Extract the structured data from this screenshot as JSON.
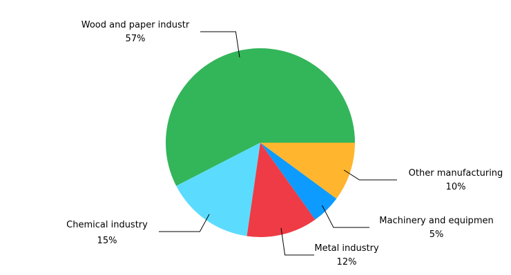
{
  "chart_data": {
    "type": "pie",
    "title": "",
    "start": "3 o'clock",
    "direction": "counter-clockwise",
    "slices": [
      {
        "label": "Wood and paper industr",
        "value": 57,
        "pct_label": "57%",
        "color": "#33b55a"
      },
      {
        "label": "Chemical industry",
        "value": 15,
        "pct_label": "15%",
        "color": "#5bdcff"
      },
      {
        "label": "Metal industry",
        "value": 12,
        "pct_label": "12%",
        "color": "#ef3b45"
      },
      {
        "label": "Machinery and equipmen",
        "value": 5,
        "pct_label": "5%",
        "color": "#0d9bff"
      },
      {
        "label": "Other manufacturing",
        "value": 10,
        "pct_label": "10%",
        "color": "#ffb62e"
      }
    ]
  }
}
